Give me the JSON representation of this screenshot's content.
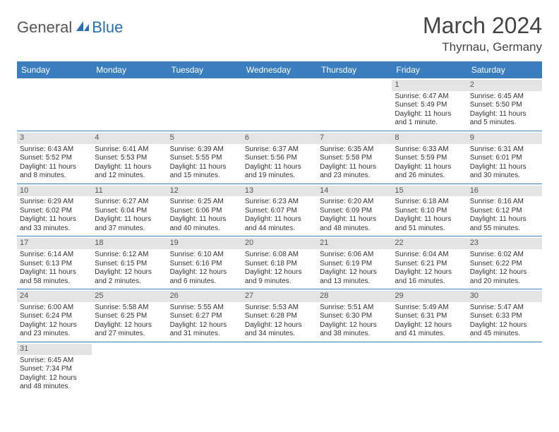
{
  "logo": {
    "part1": "General",
    "part2": "Blue"
  },
  "title": "March 2024",
  "location": "Thyrnau, Germany",
  "colors": {
    "header_bg": "#3a7ebf",
    "header_text": "#ffffff",
    "daynum_bg": "#e4e4e4",
    "week_border": "#3a7ebf",
    "logo_blue": "#2b6fb0",
    "logo_gray": "#555555"
  },
  "day_names": [
    "Sunday",
    "Monday",
    "Tuesday",
    "Wednesday",
    "Thursday",
    "Friday",
    "Saturday"
  ],
  "weeks": [
    [
      {
        "n": "",
        "sr": "",
        "ss": "",
        "dl": ""
      },
      {
        "n": "",
        "sr": "",
        "ss": "",
        "dl": ""
      },
      {
        "n": "",
        "sr": "",
        "ss": "",
        "dl": ""
      },
      {
        "n": "",
        "sr": "",
        "ss": "",
        "dl": ""
      },
      {
        "n": "",
        "sr": "",
        "ss": "",
        "dl": ""
      },
      {
        "n": "1",
        "sr": "Sunrise: 6:47 AM",
        "ss": "Sunset: 5:49 PM",
        "dl": "Daylight: 11 hours and 1 minute."
      },
      {
        "n": "2",
        "sr": "Sunrise: 6:45 AM",
        "ss": "Sunset: 5:50 PM",
        "dl": "Daylight: 11 hours and 5 minutes."
      }
    ],
    [
      {
        "n": "3",
        "sr": "Sunrise: 6:43 AM",
        "ss": "Sunset: 5:52 PM",
        "dl": "Daylight: 11 hours and 8 minutes."
      },
      {
        "n": "4",
        "sr": "Sunrise: 6:41 AM",
        "ss": "Sunset: 5:53 PM",
        "dl": "Daylight: 11 hours and 12 minutes."
      },
      {
        "n": "5",
        "sr": "Sunrise: 6:39 AM",
        "ss": "Sunset: 5:55 PM",
        "dl": "Daylight: 11 hours and 15 minutes."
      },
      {
        "n": "6",
        "sr": "Sunrise: 6:37 AM",
        "ss": "Sunset: 5:56 PM",
        "dl": "Daylight: 11 hours and 19 minutes."
      },
      {
        "n": "7",
        "sr": "Sunrise: 6:35 AM",
        "ss": "Sunset: 5:58 PM",
        "dl": "Daylight: 11 hours and 23 minutes."
      },
      {
        "n": "8",
        "sr": "Sunrise: 6:33 AM",
        "ss": "Sunset: 5:59 PM",
        "dl": "Daylight: 11 hours and 26 minutes."
      },
      {
        "n": "9",
        "sr": "Sunrise: 6:31 AM",
        "ss": "Sunset: 6:01 PM",
        "dl": "Daylight: 11 hours and 30 minutes."
      }
    ],
    [
      {
        "n": "10",
        "sr": "Sunrise: 6:29 AM",
        "ss": "Sunset: 6:02 PM",
        "dl": "Daylight: 11 hours and 33 minutes."
      },
      {
        "n": "11",
        "sr": "Sunrise: 6:27 AM",
        "ss": "Sunset: 6:04 PM",
        "dl": "Daylight: 11 hours and 37 minutes."
      },
      {
        "n": "12",
        "sr": "Sunrise: 6:25 AM",
        "ss": "Sunset: 6:06 PM",
        "dl": "Daylight: 11 hours and 40 minutes."
      },
      {
        "n": "13",
        "sr": "Sunrise: 6:23 AM",
        "ss": "Sunset: 6:07 PM",
        "dl": "Daylight: 11 hours and 44 minutes."
      },
      {
        "n": "14",
        "sr": "Sunrise: 6:20 AM",
        "ss": "Sunset: 6:09 PM",
        "dl": "Daylight: 11 hours and 48 minutes."
      },
      {
        "n": "15",
        "sr": "Sunrise: 6:18 AM",
        "ss": "Sunset: 6:10 PM",
        "dl": "Daylight: 11 hours and 51 minutes."
      },
      {
        "n": "16",
        "sr": "Sunrise: 6:16 AM",
        "ss": "Sunset: 6:12 PM",
        "dl": "Daylight: 11 hours and 55 minutes."
      }
    ],
    [
      {
        "n": "17",
        "sr": "Sunrise: 6:14 AM",
        "ss": "Sunset: 6:13 PM",
        "dl": "Daylight: 11 hours and 58 minutes."
      },
      {
        "n": "18",
        "sr": "Sunrise: 6:12 AM",
        "ss": "Sunset: 6:15 PM",
        "dl": "Daylight: 12 hours and 2 minutes."
      },
      {
        "n": "19",
        "sr": "Sunrise: 6:10 AM",
        "ss": "Sunset: 6:16 PM",
        "dl": "Daylight: 12 hours and 6 minutes."
      },
      {
        "n": "20",
        "sr": "Sunrise: 6:08 AM",
        "ss": "Sunset: 6:18 PM",
        "dl": "Daylight: 12 hours and 9 minutes."
      },
      {
        "n": "21",
        "sr": "Sunrise: 6:06 AM",
        "ss": "Sunset: 6:19 PM",
        "dl": "Daylight: 12 hours and 13 minutes."
      },
      {
        "n": "22",
        "sr": "Sunrise: 6:04 AM",
        "ss": "Sunset: 6:21 PM",
        "dl": "Daylight: 12 hours and 16 minutes."
      },
      {
        "n": "23",
        "sr": "Sunrise: 6:02 AM",
        "ss": "Sunset: 6:22 PM",
        "dl": "Daylight: 12 hours and 20 minutes."
      }
    ],
    [
      {
        "n": "24",
        "sr": "Sunrise: 6:00 AM",
        "ss": "Sunset: 6:24 PM",
        "dl": "Daylight: 12 hours and 23 minutes."
      },
      {
        "n": "25",
        "sr": "Sunrise: 5:58 AM",
        "ss": "Sunset: 6:25 PM",
        "dl": "Daylight: 12 hours and 27 minutes."
      },
      {
        "n": "26",
        "sr": "Sunrise: 5:55 AM",
        "ss": "Sunset: 6:27 PM",
        "dl": "Daylight: 12 hours and 31 minutes."
      },
      {
        "n": "27",
        "sr": "Sunrise: 5:53 AM",
        "ss": "Sunset: 6:28 PM",
        "dl": "Daylight: 12 hours and 34 minutes."
      },
      {
        "n": "28",
        "sr": "Sunrise: 5:51 AM",
        "ss": "Sunset: 6:30 PM",
        "dl": "Daylight: 12 hours and 38 minutes."
      },
      {
        "n": "29",
        "sr": "Sunrise: 5:49 AM",
        "ss": "Sunset: 6:31 PM",
        "dl": "Daylight: 12 hours and 41 minutes."
      },
      {
        "n": "30",
        "sr": "Sunrise: 5:47 AM",
        "ss": "Sunset: 6:33 PM",
        "dl": "Daylight: 12 hours and 45 minutes."
      }
    ],
    [
      {
        "n": "31",
        "sr": "Sunrise: 6:45 AM",
        "ss": "Sunset: 7:34 PM",
        "dl": "Daylight: 12 hours and 48 minutes."
      },
      {
        "n": "",
        "sr": "",
        "ss": "",
        "dl": ""
      },
      {
        "n": "",
        "sr": "",
        "ss": "",
        "dl": ""
      },
      {
        "n": "",
        "sr": "",
        "ss": "",
        "dl": ""
      },
      {
        "n": "",
        "sr": "",
        "ss": "",
        "dl": ""
      },
      {
        "n": "",
        "sr": "",
        "ss": "",
        "dl": ""
      },
      {
        "n": "",
        "sr": "",
        "ss": "",
        "dl": ""
      }
    ]
  ]
}
